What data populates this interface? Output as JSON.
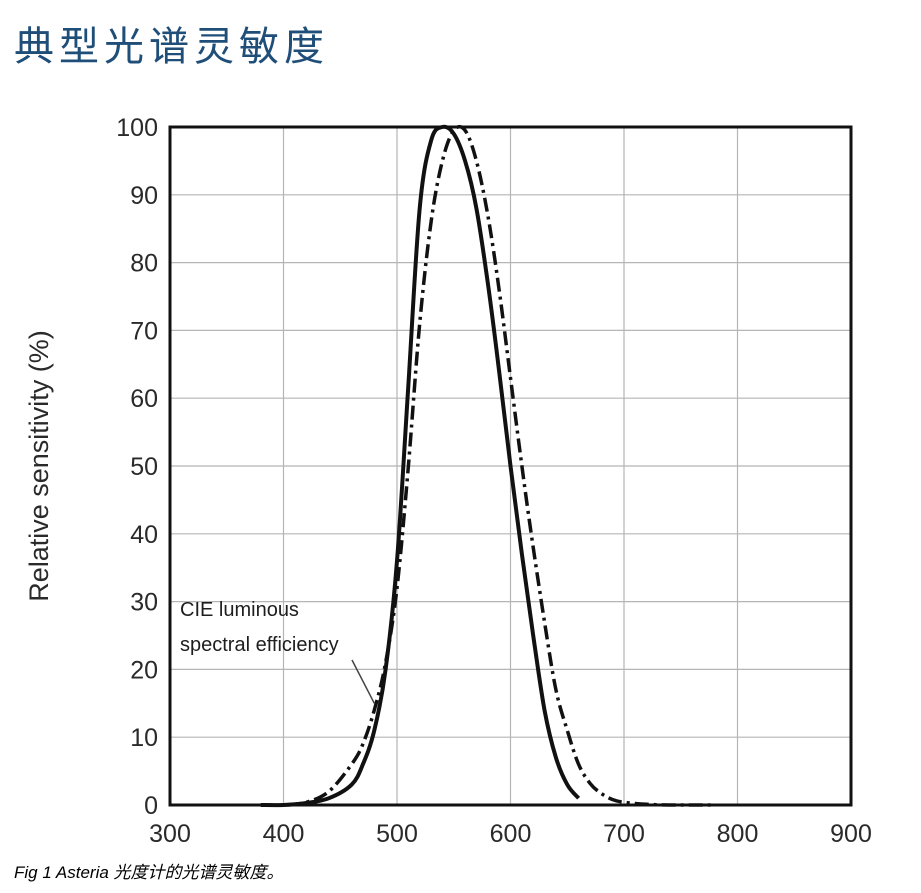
{
  "page": {
    "title": "典型光谱灵敏度",
    "caption_prefix": "Fig 1 Asteria",
    "caption_suffix": " 光度计的光谱灵敏度。"
  },
  "chart_data": {
    "type": "line",
    "title": "",
    "xlabel": "",
    "ylabel": "Relative sensitivity (%)",
    "xlim": [
      300,
      900
    ],
    "ylim": [
      0,
      100
    ],
    "xticks": [
      300,
      400,
      500,
      600,
      700,
      800,
      900
    ],
    "yticks": [
      0,
      10,
      20,
      30,
      40,
      50,
      60,
      70,
      80,
      90,
      100
    ],
    "grid": true,
    "legend": "none",
    "annotation": {
      "lines": [
        "CIE luminous",
        "spectral efficiency"
      ],
      "points_to_x": 480,
      "points_to_y": 15
    },
    "series": [
      {
        "style": "solid",
        "color": "#111111",
        "x": [
          380,
          400,
          420,
          440,
          460,
          470,
          480,
          490,
          500,
          510,
          520,
          530,
          540,
          550,
          560,
          570,
          580,
          590,
          600,
          610,
          620,
          630,
          640,
          650,
          660
        ],
        "y": [
          0,
          0,
          0.3,
          1,
          3,
          6,
          11,
          20,
          36,
          62,
          88,
          98,
          100,
          99,
          95,
          88,
          77,
          64,
          50,
          37,
          25,
          14,
          7,
          3,
          1
        ]
      },
      {
        "style": "dash-dot",
        "color": "#111111",
        "x": [
          380,
          400,
          420,
          440,
          460,
          470,
          480,
          490,
          500,
          510,
          520,
          530,
          540,
          550,
          560,
          570,
          580,
          590,
          600,
          610,
          620,
          630,
          640,
          650,
          660,
          670,
          680,
          690,
          700,
          720,
          740,
          760,
          780
        ],
        "y": [
          0,
          0,
          0.4,
          2,
          6,
          9,
          14,
          21,
          32,
          50,
          71,
          86,
          95,
          99.5,
          99.5,
          95,
          87,
          76,
          63,
          50,
          38,
          27,
          17,
          11,
          6,
          3.2,
          1.7,
          0.8,
          0.4,
          0.1,
          0,
          0,
          0
        ]
      }
    ]
  }
}
